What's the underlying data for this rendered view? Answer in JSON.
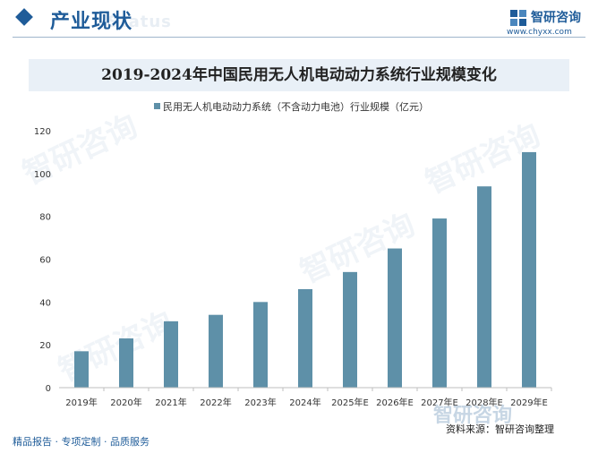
{
  "header": {
    "title": "产业现状",
    "watermark": "Status",
    "brand_name": "智研咨询",
    "brand_url": "www.chyxx.com"
  },
  "chart_data": {
    "type": "bar",
    "title": "2019-2024年中国民用无人机电动动力系统行业规模变化",
    "categories": [
      "2019年",
      "2020年",
      "2021年",
      "2022年",
      "2023年",
      "2024年",
      "2025年E",
      "2026年E",
      "2027年E",
      "2028年E",
      "2029年E"
    ],
    "series": [
      {
        "name": "民用无人机电动动力系统（不含动力电池）行业规模（亿元）",
        "values": [
          17,
          23,
          31,
          34,
          40,
          46,
          54,
          65,
          79,
          94,
          110
        ],
        "color": "#5e90a8"
      }
    ],
    "ylim": [
      0,
      120
    ],
    "yticks": [
      0,
      20,
      40,
      60,
      80,
      100,
      120
    ],
    "grid": false,
    "legend": "top-center"
  },
  "footer": {
    "left": "精品报告 · 专项定制 · 品质服务",
    "source": "资料来源：智研咨询整理",
    "logo": "智研咨询"
  }
}
